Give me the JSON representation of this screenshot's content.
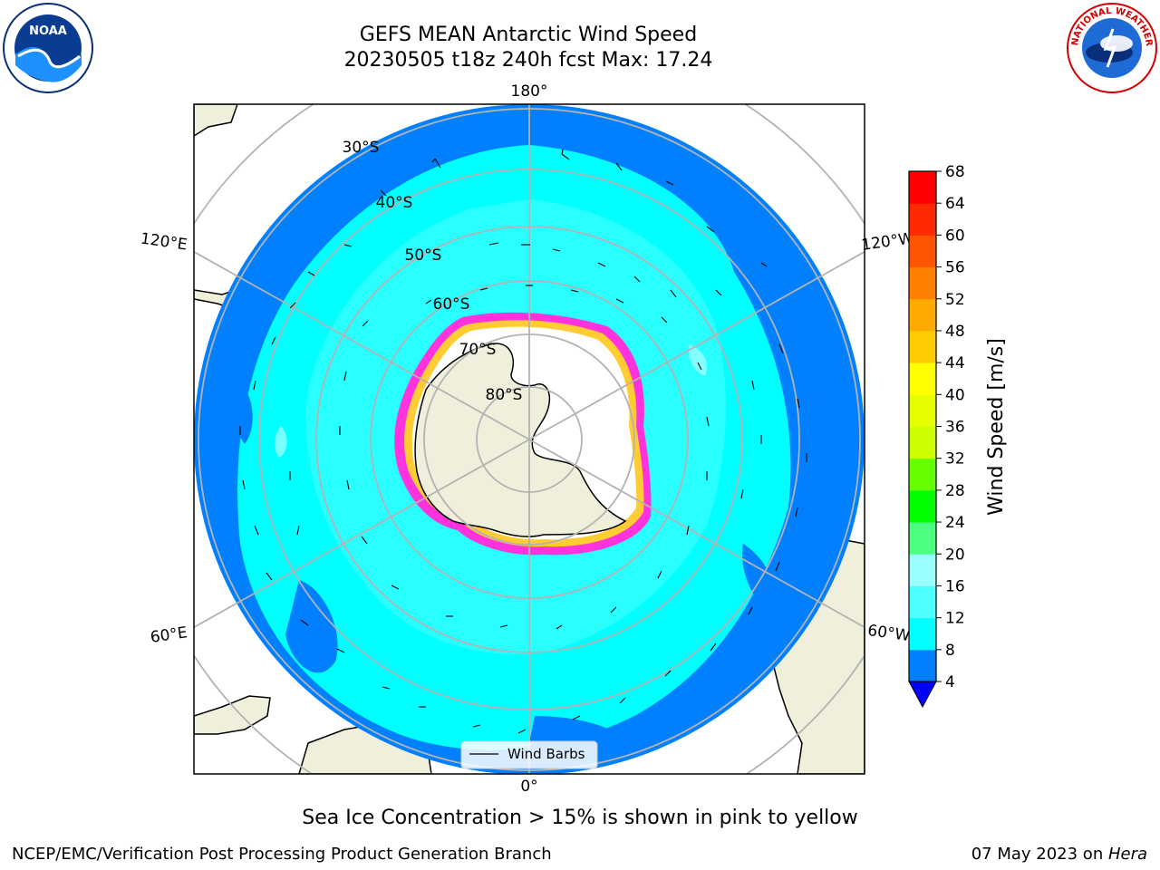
{
  "title": {
    "line1": "GEFS MEAN Antarctic Wind Speed",
    "line2": "20230505 t18z 240h fcst   Max: 17.24"
  },
  "logos": {
    "noara": {
      "text": "NOAA",
      "icon": "noaa-logo-icon"
    },
    "nws": {
      "text": "NATIONAL WEATHER SERVICE",
      "icon": "nws-logo-icon"
    }
  },
  "map": {
    "longitude_labels": [
      "180°",
      "120°E",
      "120°W",
      "60°E",
      "60°W",
      "0°"
    ],
    "latitude_labels": [
      "30°S",
      "40°S",
      "50°S",
      "60°S",
      "70°S",
      "80°S"
    ],
    "legend_label": "Wind Barbs",
    "colors": {
      "land": "#efefdb",
      "ocean_low": "#0080ff",
      "ocean_mid": "#00ffff",
      "ocean_hi": "#4dffff",
      "ice": "#ff33dd",
      "ice_edge": "#ffcc33",
      "grid": "#b3b3b3"
    }
  },
  "colorbar": {
    "label": "Wind Speed [m/s]",
    "ticks": [
      "4",
      "8",
      "12",
      "16",
      "20",
      "24",
      "28",
      "32",
      "36",
      "40",
      "44",
      "48",
      "52",
      "56",
      "60",
      "64",
      "68"
    ],
    "colors": [
      "#0080ff",
      "#00ffff",
      "#4dffff",
      "#99ffff",
      "#4dff80",
      "#00ff00",
      "#66ff00",
      "#ccff00",
      "#e6ff00",
      "#ffff00",
      "#ffcc00",
      "#ffaa00",
      "#ff8000",
      "#ff5500",
      "#ff2a00",
      "#ff0000"
    ],
    "extend_color": "#0000ff"
  },
  "footer": {
    "caption": "Sea Ice Concentration > 15% is shown in pink to yellow",
    "left": "NCEP/EMC/Verification Post Processing Product Generation Branch",
    "right_prefix": "07 May 2023 on ",
    "right_host": "Hera"
  }
}
